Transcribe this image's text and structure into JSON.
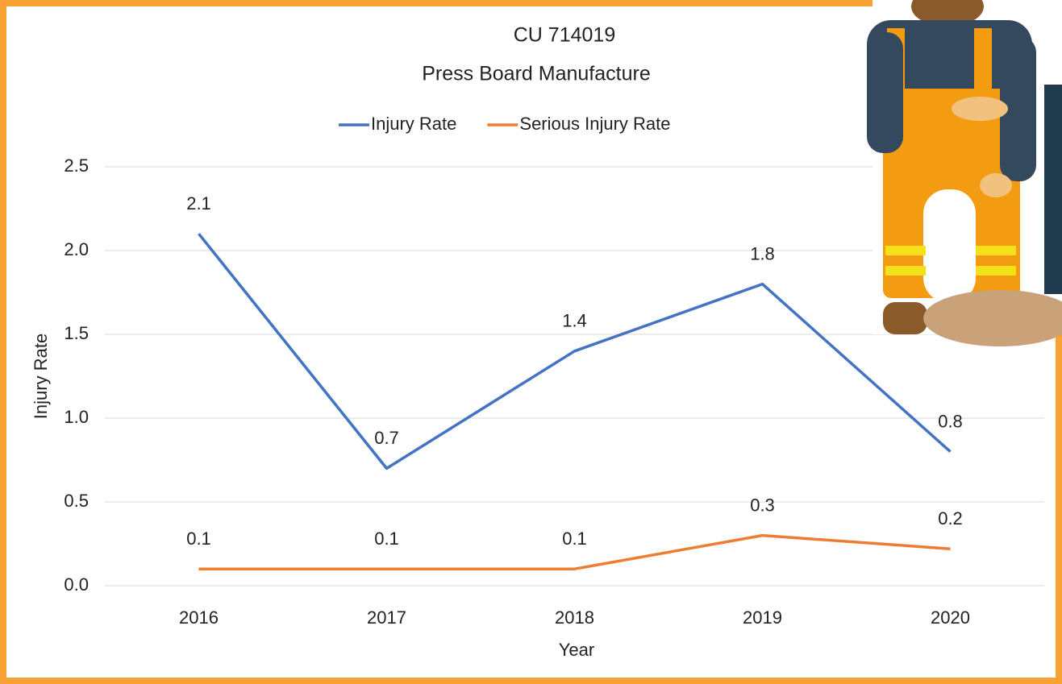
{
  "chart_data": {
    "type": "line",
    "title": "CU 714019",
    "subtitle": "Press Board Manufacture",
    "x_label": "Year",
    "y_label": "Injury Rate",
    "categories": [
      "2016",
      "2017",
      "2018",
      "2019",
      "2020"
    ],
    "series": [
      {
        "name": "Injury Rate",
        "color": "#4472c4",
        "values": [
          2.1,
          0.7,
          1.4,
          1.8,
          0.8
        ]
      },
      {
        "name": "Serious Injury Rate",
        "color": "#ed7d31",
        "values": [
          0.1,
          0.1,
          0.1,
          0.3,
          0.22
        ],
        "value_labels": [
          "0.1",
          "0.1",
          "0.1",
          "0.3",
          "0.2"
        ]
      }
    ],
    "ylim": [
      0,
      2.5
    ],
    "yticks": [
      {
        "value": 0,
        "label": "0.0"
      },
      0.5,
      {
        "value": 1,
        "label": "1.0"
      },
      1.5,
      {
        "value": 2,
        "label": "2.0"
      },
      2.5
    ],
    "grid": true,
    "legend": "top"
  }
}
